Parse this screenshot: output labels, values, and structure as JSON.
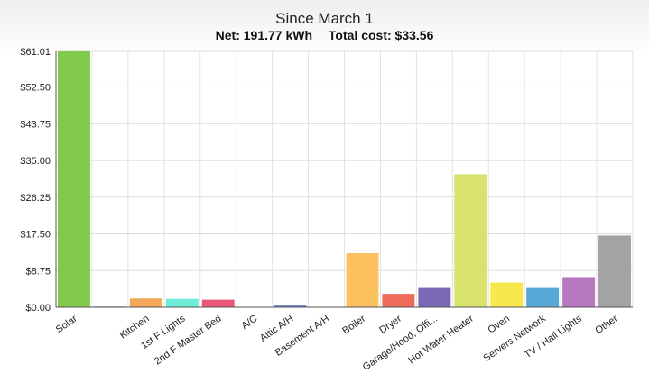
{
  "chart_data": {
    "type": "bar",
    "title": "Since March 1",
    "subtitle": {
      "net": "Net: 191.77 kWh",
      "cost": "Total cost: $33.56"
    },
    "xlabel": "",
    "ylabel": "",
    "ylim": [
      0,
      61.01
    ],
    "yticks": [
      "$61.01",
      "$52.50",
      "$43.75",
      "$35.00",
      "$26.25",
      "$17.50",
      "$8.75",
      "$0.00"
    ],
    "ytick_values": [
      61.01,
      52.5,
      43.75,
      35.0,
      26.25,
      17.5,
      8.75,
      0
    ],
    "grid": true,
    "categories": [
      "Solar",
      "",
      "Kitchen",
      "1st F Lights",
      "2nd F Master Bed",
      "A/C",
      "Attic A/H",
      "Basement A/H",
      "Boiler",
      "Dryer",
      "Garage/Hood, Offi...",
      "Hot Water Heater",
      "Oven",
      "Servers Network",
      "TV / Hall Lights",
      "Other"
    ],
    "values": [
      61.01,
      0.15,
      2.1,
      2.0,
      1.8,
      0,
      0.5,
      0,
      12.9,
      3.2,
      4.6,
      31.7,
      5.9,
      4.6,
      7.2,
      17.1
    ],
    "colors": [
      "#80c94b",
      "#cccccc",
      "#f5a85a",
      "#6eecd6",
      "#e9577a",
      "#aaaaaa",
      "#7b85c8",
      "#aaaaaa",
      "#fbc15e",
      "#ee6a5b",
      "#7b68b4",
      "#d7e36c",
      "#f7e84b",
      "#55a9d6",
      "#b878c0",
      "#a3a3a3"
    ]
  }
}
